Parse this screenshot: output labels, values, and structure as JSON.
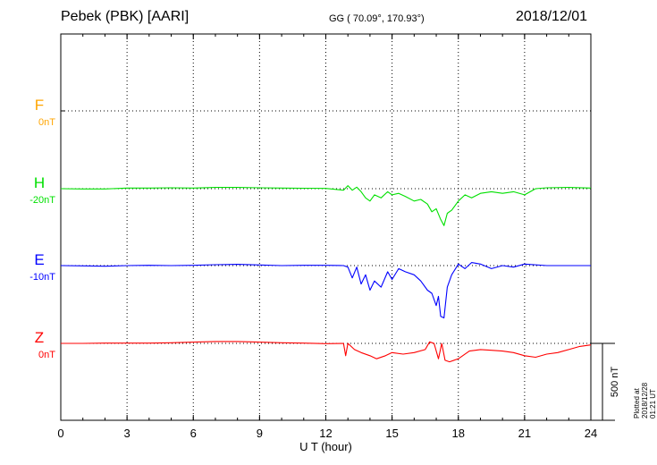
{
  "header": {
    "station": "Pebek (PBK)  [AARI]",
    "coords": "GG ( 70.09°, 170.93°)",
    "date": "2018/12/01"
  },
  "plotted_stamp": "Plotted at 2018/12/28 01:21  UT",
  "scale_label": "500 nT",
  "chart_data": {
    "type": "line",
    "title": "Pebek (PBK)  [AARI]",
    "xlabel": "U T (hour)",
    "ylabel": "",
    "xlim": [
      0,
      24
    ],
    "xticks": [
      "0",
      "3",
      "6",
      "9",
      "12",
      "15",
      "18",
      "21",
      "24"
    ],
    "grid": true,
    "scale_bar_nT": 500,
    "series": [
      {
        "name": "F",
        "offset_label": "0nT",
        "color": "#ffa500",
        "x": [],
        "values": []
      },
      {
        "name": "H",
        "offset_label": "-20nT",
        "color": "#00e000",
        "x": [
          0,
          1,
          2,
          3,
          4,
          5,
          6,
          7,
          8,
          9,
          10,
          11,
          12,
          12.8,
          13.0,
          13.2,
          13.4,
          13.6,
          13.8,
          14.0,
          14.2,
          14.5,
          14.8,
          15.0,
          15.3,
          15.6,
          16.0,
          16.3,
          16.6,
          16.8,
          17.0,
          17.2,
          17.35,
          17.5,
          17.7,
          18.0,
          18.3,
          18.6,
          19.0,
          19.5,
          20.0,
          20.5,
          21.0,
          21.5,
          22.0,
          23.0,
          24.0
        ],
        "values": [
          0,
          -2,
          -2,
          4,
          4,
          6,
          4,
          8,
          8,
          6,
          4,
          3,
          2,
          -10,
          20,
          -10,
          10,
          -20,
          -60,
          -80,
          -40,
          -60,
          -20,
          -40,
          -30,
          -50,
          -80,
          -70,
          -100,
          -150,
          -130,
          -200,
          -240,
          -160,
          -140,
          -80,
          -40,
          -60,
          -30,
          -20,
          -30,
          -20,
          -40,
          0,
          6,
          8,
          4
        ]
      },
      {
        "name": "E",
        "offset_label": "-10nT",
        "color": "#0000ff",
        "x": [
          0,
          1,
          2,
          3,
          4,
          5,
          6,
          7,
          8,
          9,
          10,
          11,
          12,
          12.8,
          13.0,
          13.2,
          13.4,
          13.6,
          13.8,
          14.0,
          14.2,
          14.5,
          14.8,
          15.0,
          15.3,
          15.6,
          16.0,
          16.3,
          16.6,
          16.8,
          17.0,
          17.1,
          17.2,
          17.35,
          17.5,
          17.7,
          18.0,
          18.3,
          18.6,
          19.0,
          19.5,
          20.0,
          20.5,
          21.0,
          22.0,
          23.0,
          24.0
        ],
        "values": [
          0,
          -2,
          -4,
          0,
          2,
          0,
          2,
          6,
          8,
          4,
          0,
          2,
          2,
          0,
          -10,
          -80,
          -10,
          -120,
          -60,
          -160,
          -100,
          -140,
          -40,
          -90,
          -20,
          -40,
          -60,
          -100,
          -160,
          -180,
          -260,
          -200,
          -330,
          -340,
          -140,
          -60,
          10,
          -20,
          20,
          10,
          -20,
          0,
          -10,
          10,
          0,
          0,
          0
        ]
      },
      {
        "name": "Z",
        "offset_label": "0nT",
        "color": "#ff0000",
        "x": [
          0,
          1,
          2,
          3,
          4,
          5,
          6,
          7,
          8,
          9,
          10,
          11,
          12,
          12.8,
          12.9,
          13.0,
          13.3,
          13.6,
          14.0,
          14.3,
          14.7,
          15.0,
          15.5,
          16.0,
          16.5,
          16.7,
          16.9,
          17.1,
          17.25,
          17.4,
          17.6,
          18.0,
          18.5,
          19.0,
          19.5,
          20.0,
          20.5,
          21.0,
          21.5,
          22.0,
          22.5,
          23.0,
          23.5,
          24.0
        ],
        "values": [
          0,
          0,
          2,
          2,
          2,
          4,
          8,
          12,
          12,
          8,
          4,
          2,
          -2,
          0,
          -80,
          0,
          -40,
          -60,
          -80,
          -100,
          -80,
          -60,
          -70,
          -60,
          -40,
          10,
          0,
          -100,
          0,
          -110,
          -120,
          -100,
          -50,
          -40,
          -45,
          -50,
          -60,
          -80,
          -90,
          -70,
          -60,
          -40,
          -20,
          -10
        ]
      }
    ]
  }
}
